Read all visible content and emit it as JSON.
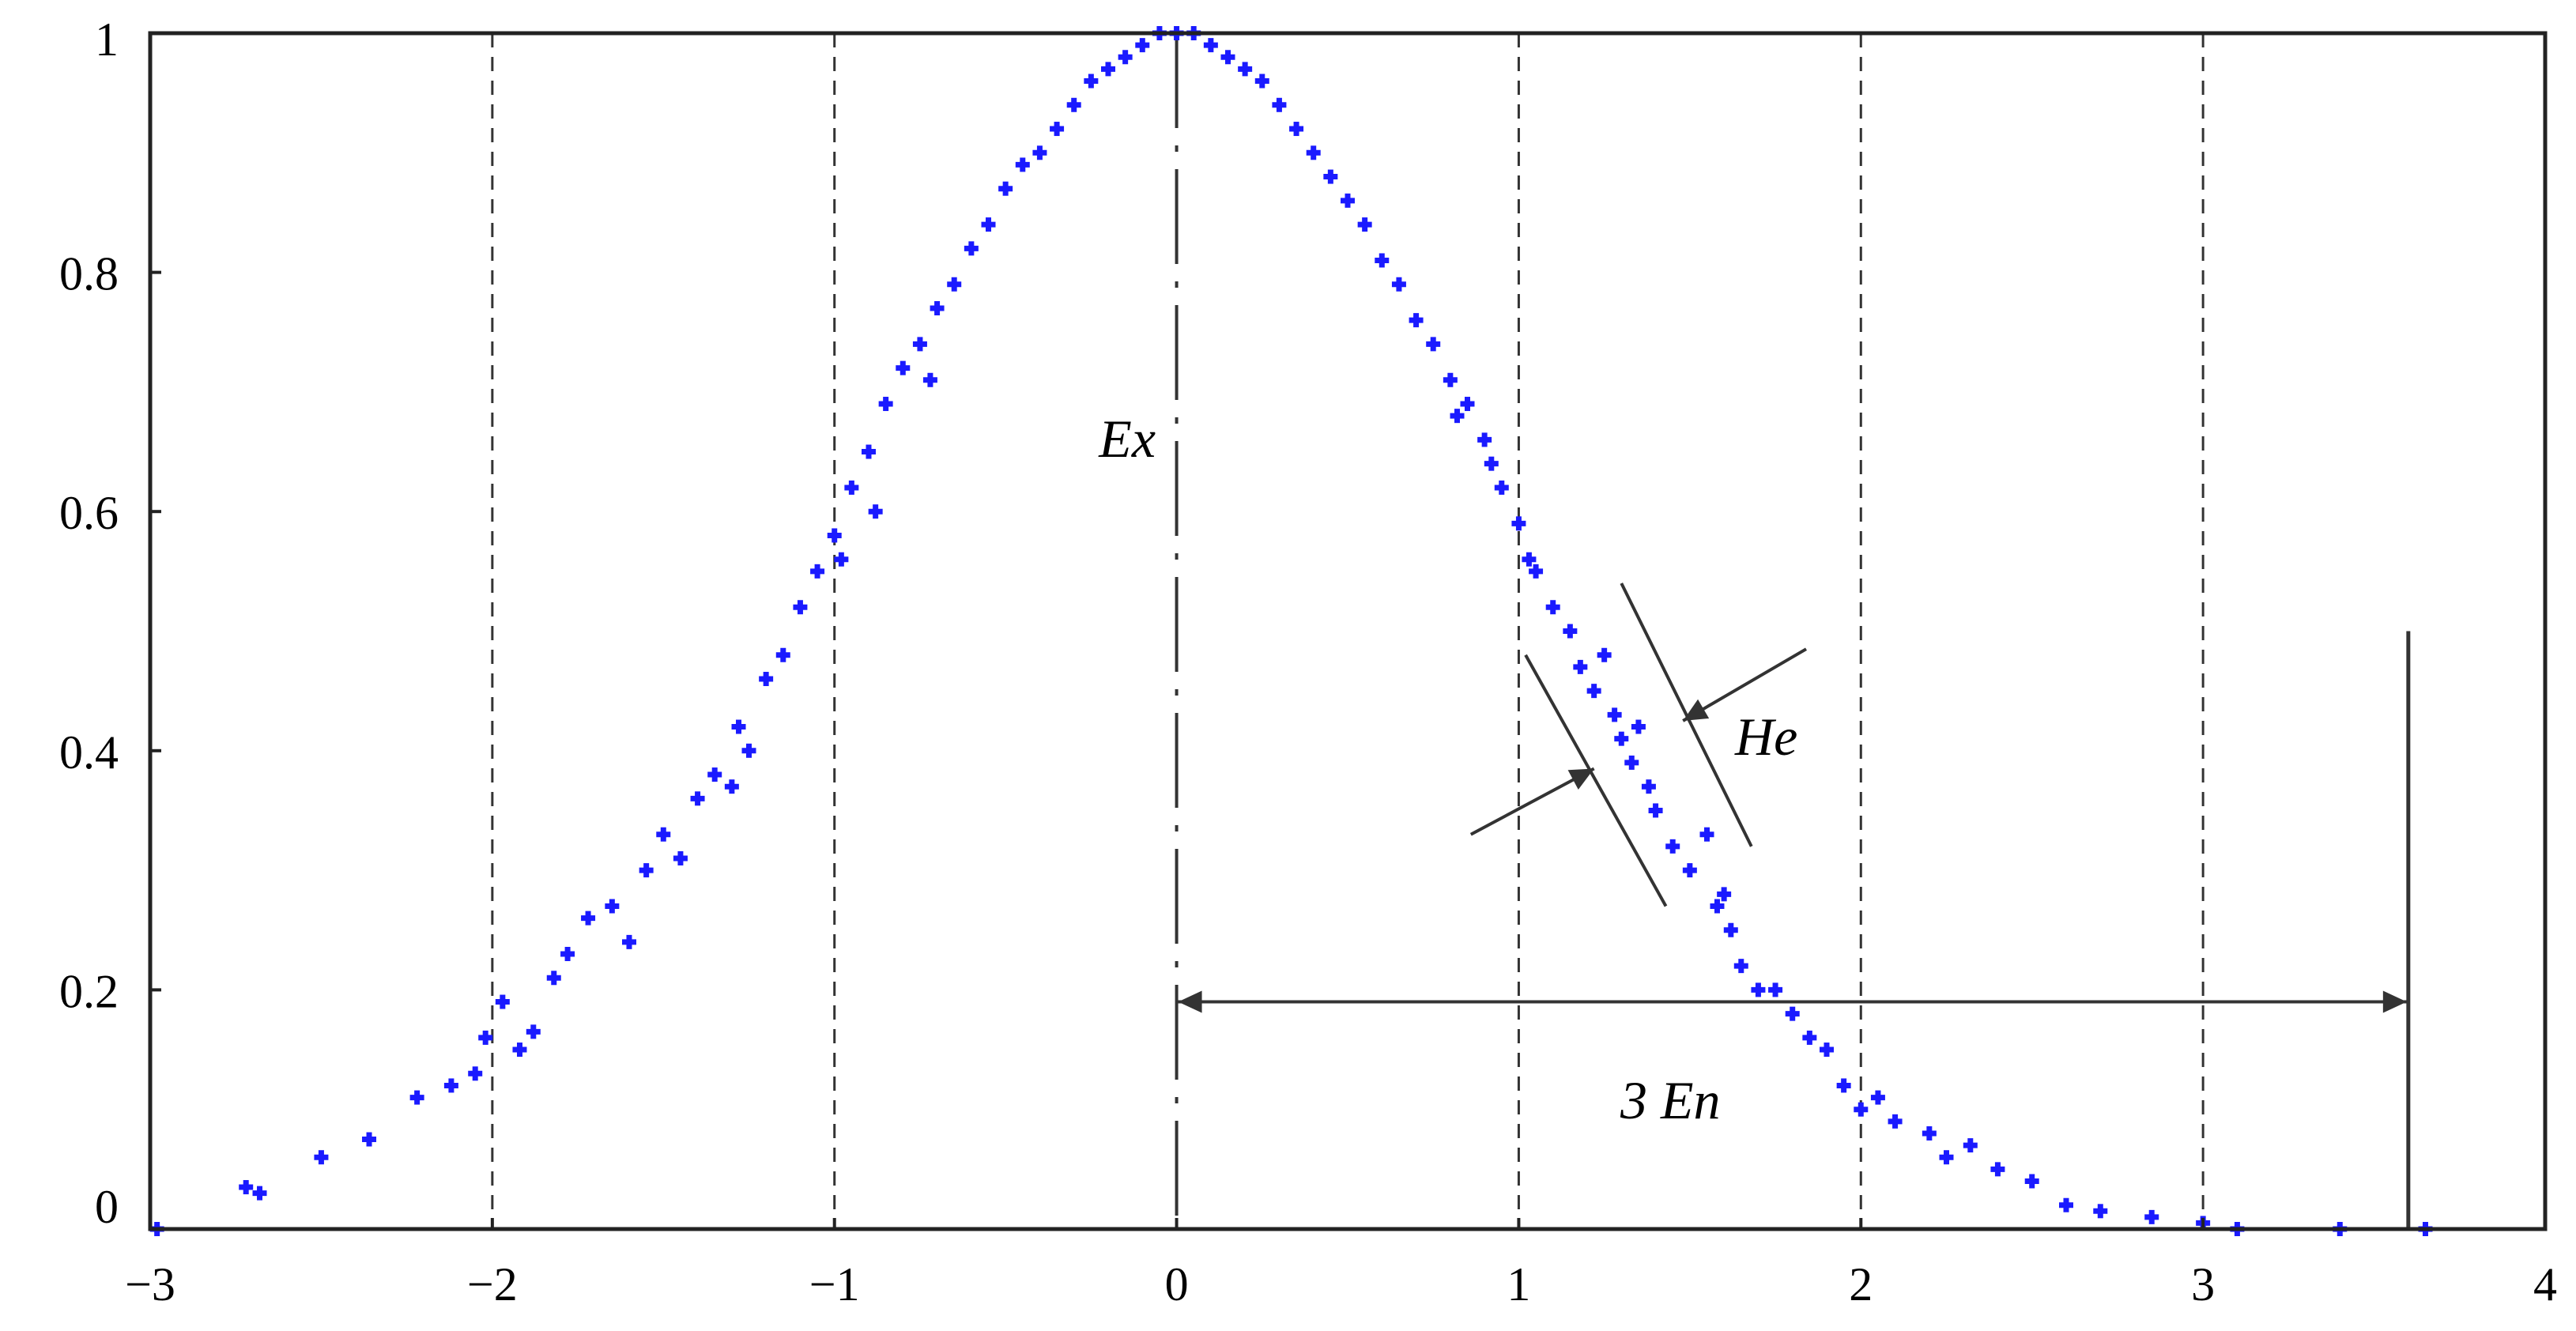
{
  "chart_data": {
    "type": "scatter",
    "title": "",
    "xlabel": "",
    "ylabel": "",
    "xlim": [
      -3,
      4
    ],
    "ylim": [
      0,
      1
    ],
    "x_ticks": [
      -3,
      -2,
      -1,
      0,
      1,
      2,
      3,
      4
    ],
    "x_tick_labels": [
      "−3",
      "−2",
      "−1",
      "0",
      "1",
      "2",
      "3",
      "4"
    ],
    "y_ticks": [
      0,
      0.2,
      0.4,
      0.6,
      0.8,
      1
    ],
    "y_tick_labels": [
      "0",
      "0.2",
      "0.4",
      "0.6",
      "0.8",
      "1"
    ],
    "vertical_gridlines": [
      -2,
      -1,
      1,
      2,
      3
    ],
    "grid_style": "dashed",
    "marker_color": "#1a1aff",
    "series": [
      {
        "values": [
          [
            -2.98,
            0.0
          ],
          [
            -2.72,
            0.035
          ],
          [
            -2.68,
            0.03
          ],
          [
            -2.5,
            0.06
          ],
          [
            -2.36,
            0.075
          ],
          [
            -2.22,
            0.11
          ],
          [
            -2.12,
            0.12
          ],
          [
            -2.05,
            0.13
          ],
          [
            -2.02,
            0.16
          ],
          [
            -1.97,
            0.19
          ],
          [
            -1.92,
            0.15
          ],
          [
            -1.88,
            0.165
          ],
          [
            -1.82,
            0.21
          ],
          [
            -1.78,
            0.23
          ],
          [
            -1.72,
            0.26
          ],
          [
            -1.65,
            0.27
          ],
          [
            -1.6,
            0.24
          ],
          [
            -1.55,
            0.3
          ],
          [
            -1.5,
            0.33
          ],
          [
            -1.45,
            0.31
          ],
          [
            -1.4,
            0.36
          ],
          [
            -1.35,
            0.38
          ],
          [
            -1.3,
            0.37
          ],
          [
            -1.28,
            0.42
          ],
          [
            -1.25,
            0.4
          ],
          [
            -1.2,
            0.46
          ],
          [
            -1.15,
            0.48
          ],
          [
            -1.1,
            0.52
          ],
          [
            -1.05,
            0.55
          ],
          [
            -1.0,
            0.58
          ],
          [
            -0.98,
            0.56
          ],
          [
            -0.95,
            0.62
          ],
          [
            -0.9,
            0.65
          ],
          [
            -0.88,
            0.6
          ],
          [
            -0.85,
            0.69
          ],
          [
            -0.8,
            0.72
          ],
          [
            -0.75,
            0.74
          ],
          [
            -0.72,
            0.71
          ],
          [
            -0.7,
            0.77
          ],
          [
            -0.65,
            0.79
          ],
          [
            -0.6,
            0.82
          ],
          [
            -0.55,
            0.84
          ],
          [
            -0.5,
            0.87
          ],
          [
            -0.45,
            0.89
          ],
          [
            -0.4,
            0.9
          ],
          [
            -0.35,
            0.92
          ],
          [
            -0.3,
            0.94
          ],
          [
            -0.25,
            0.96
          ],
          [
            -0.2,
            0.97
          ],
          [
            -0.15,
            0.98
          ],
          [
            -0.1,
            0.99
          ],
          [
            -0.05,
            1.0
          ],
          [
            0.0,
            1.0
          ],
          [
            0.05,
            1.0
          ],
          [
            0.1,
            0.99
          ],
          [
            0.15,
            0.98
          ],
          [
            0.2,
            0.97
          ],
          [
            0.25,
            0.96
          ],
          [
            0.3,
            0.94
          ],
          [
            0.35,
            0.92
          ],
          [
            0.4,
            0.9
          ],
          [
            0.45,
            0.88
          ],
          [
            0.5,
            0.86
          ],
          [
            0.55,
            0.84
          ],
          [
            0.6,
            0.81
          ],
          [
            0.65,
            0.79
          ],
          [
            0.7,
            0.76
          ],
          [
            0.75,
            0.74
          ],
          [
            0.8,
            0.71
          ],
          [
            0.82,
            0.68
          ],
          [
            0.85,
            0.69
          ],
          [
            0.9,
            0.66
          ],
          [
            0.92,
            0.64
          ],
          [
            0.95,
            0.62
          ],
          [
            1.0,
            0.59
          ],
          [
            1.03,
            0.56
          ],
          [
            1.05,
            0.55
          ],
          [
            1.1,
            0.52
          ],
          [
            1.15,
            0.5
          ],
          [
            1.18,
            0.47
          ],
          [
            1.22,
            0.45
          ],
          [
            1.25,
            0.48
          ],
          [
            1.28,
            0.43
          ],
          [
            1.3,
            0.41
          ],
          [
            1.33,
            0.39
          ],
          [
            1.35,
            0.42
          ],
          [
            1.38,
            0.37
          ],
          [
            1.4,
            0.35
          ],
          [
            1.45,
            0.32
          ],
          [
            1.5,
            0.3
          ],
          [
            1.55,
            0.33
          ],
          [
            1.58,
            0.27
          ],
          [
            1.6,
            0.28
          ],
          [
            1.62,
            0.25
          ],
          [
            1.65,
            0.22
          ],
          [
            1.7,
            0.2
          ],
          [
            1.75,
            0.2
          ],
          [
            1.8,
            0.18
          ],
          [
            1.85,
            0.16
          ],
          [
            1.9,
            0.15
          ],
          [
            1.95,
            0.12
          ],
          [
            2.0,
            0.1
          ],
          [
            2.05,
            0.11
          ],
          [
            2.1,
            0.09
          ],
          [
            2.2,
            0.08
          ],
          [
            2.25,
            0.06
          ],
          [
            2.32,
            0.07
          ],
          [
            2.4,
            0.05
          ],
          [
            2.5,
            0.04
          ],
          [
            2.6,
            0.02
          ],
          [
            2.7,
            0.015
          ],
          [
            2.85,
            0.01
          ],
          [
            3.0,
            0.005
          ],
          [
            3.1,
            0.0
          ],
          [
            3.4,
            0.0
          ],
          [
            3.65,
            0.0
          ]
        ]
      }
    ],
    "annotations": [
      {
        "key": "ex",
        "text": "Ex"
      },
      {
        "key": "he",
        "text": "He"
      },
      {
        "key": "en",
        "text": "3 En"
      }
    ]
  }
}
